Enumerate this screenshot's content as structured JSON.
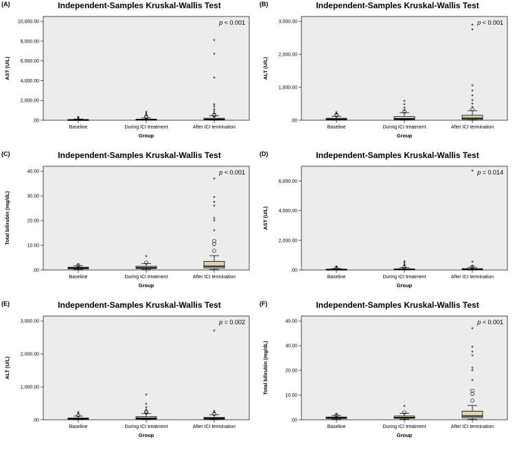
{
  "chart_data": [
    {
      "type": "box",
      "panel_label": "(A)",
      "title": "Independent-Samples Kruskal-Wallis Test",
      "pvalue": {
        "prefix": "p",
        "text": " < 0.001"
      },
      "xlabel": "Group",
      "ylabel": "AST (U/L)",
      "ylim": [
        0,
        10500
      ],
      "yticks": [
        0,
        2000,
        4000,
        6000,
        8000,
        10000
      ],
      "ytick_labels": [
        ".00",
        "2,000.00",
        "4,000.00",
        "6,000.00",
        "8,000.00",
        "10,000.00"
      ],
      "categories": [
        "Baseline",
        "During ICI treatment",
        "After ICI termination"
      ],
      "boxes": [
        {
          "q1": 30,
          "median": 45,
          "q3": 70,
          "whisker_low": 10,
          "whisker_high": 120,
          "outliers": [],
          "extremes": [
            180,
            250,
            330
          ]
        },
        {
          "q1": 35,
          "median": 60,
          "q3": 110,
          "whisker_low": 10,
          "whisker_high": 230,
          "outliers": [
            300,
            380
          ],
          "extremes": [
            550,
            700,
            850
          ]
        },
        {
          "q1": 40,
          "median": 90,
          "q3": 200,
          "whisker_low": 10,
          "whisker_high": 450,
          "outliers": [
            500,
            560
          ],
          "extremes": [
            700,
            900,
            1100,
            1400,
            1600,
            4300,
            6700,
            8100
          ]
        }
      ]
    },
    {
      "type": "box",
      "panel_label": "(B)",
      "title": "Independent-Samples Kruskal-Wallis Test",
      "pvalue": {
        "prefix": "p",
        "text": " < 0.001"
      },
      "xlabel": "Group",
      "ylabel": "ALT (U/L)",
      "ylim": [
        0,
        3150
      ],
      "yticks": [
        0,
        1000,
        2000,
        3000
      ],
      "ytick_labels": [
        ".00",
        "1,000.00",
        "2,000.00",
        "3,000.00"
      ],
      "categories": [
        "Baseline",
        "During ICI treatment",
        "After ICI termination"
      ],
      "boxes": [
        {
          "q1": 15,
          "median": 30,
          "q3": 60,
          "whisker_low": 5,
          "whisker_high": 120,
          "outliers": [
            150,
            170
          ],
          "extremes": [
            200,
            240
          ]
        },
        {
          "q1": 20,
          "median": 45,
          "q3": 110,
          "whisker_low": 5,
          "whisker_high": 230,
          "outliers": [
            260
          ],
          "extremes": [
            300,
            380,
            480,
            580
          ]
        },
        {
          "q1": 25,
          "median": 60,
          "q3": 150,
          "whisker_low": 5,
          "whisker_high": 290,
          "outliers": [
            330
          ],
          "extremes": [
            400,
            500,
            600,
            750,
            900,
            1050,
            2750,
            2900
          ]
        }
      ]
    },
    {
      "type": "box",
      "panel_label": "(C)",
      "title": "Independent-Samples Kruskal-Wallis Test",
      "pvalue": {
        "prefix": "p",
        "text": " < 0.001"
      },
      "xlabel": "Group",
      "ylabel": "Total bilirubin (mg/dL)",
      "ylim": [
        0,
        42
      ],
      "yticks": [
        0,
        10,
        20,
        30,
        40
      ],
      "ytick_labels": [
        ".00",
        "10.00",
        "20.00",
        "30.00",
        "40.00"
      ],
      "categories": [
        "Baseline",
        "During ICI treatment",
        "After ICI termination"
      ],
      "boxes": [
        {
          "q1": 0.5,
          "median": 0.8,
          "q3": 1.1,
          "whisker_low": 0.2,
          "whisker_high": 1.7,
          "outliers": [
            1.9
          ],
          "extremes": [
            2.2
          ]
        },
        {
          "q1": 0.6,
          "median": 0.9,
          "q3": 1.5,
          "whisker_low": 0.2,
          "whisker_high": 2.6,
          "outliers": [
            3.0
          ],
          "extremes": [
            5.5
          ]
        },
        {
          "q1": 0.8,
          "median": 1.5,
          "q3": 3.5,
          "whisker_low": 0.2,
          "whisker_high": 5.8,
          "outliers": [
            7.8,
            10.5,
            11.8
          ],
          "extremes": [
            16,
            20,
            21,
            26,
            27.5,
            29.5,
            37
          ]
        }
      ]
    },
    {
      "type": "box",
      "panel_label": "(D)",
      "title": "Independent-Samples Kruskal-Wallis Test",
      "pvalue": {
        "prefix": "p",
        "text": " = 0.014"
      },
      "xlabel": "Group",
      "ylabel": "AST (U/L)",
      "ylim": [
        0,
        7000
      ],
      "yticks": [
        0,
        2000,
        4000,
        6000
      ],
      "ytick_labels": [
        ".00",
        "2,000.00",
        "4,000.00",
        "6,000.00"
      ],
      "categories": [
        "Baseline",
        "During ICI treatment",
        "After ICI termination"
      ],
      "boxes": [
        {
          "q1": 20,
          "median": 35,
          "q3": 60,
          "whisker_low": 5,
          "whisker_high": 100,
          "outliers": [
            130
          ],
          "extremes": [
            180,
            230
          ]
        },
        {
          "q1": 25,
          "median": 45,
          "q3": 80,
          "whisker_low": 5,
          "whisker_high": 160,
          "outliers": [
            200
          ],
          "extremes": [
            280,
            380,
            480,
            580
          ]
        },
        {
          "q1": 25,
          "median": 50,
          "q3": 90,
          "whisker_low": 5,
          "whisker_high": 180,
          "outliers": [
            220
          ],
          "extremes": [
            250,
            550,
            6700
          ]
        }
      ]
    },
    {
      "type": "box",
      "panel_label": "(E)",
      "title": "Independent-Samples Kruskal-Wallis Test",
      "pvalue": {
        "prefix": "p",
        "text": " = 0.002"
      },
      "xlabel": "Group",
      "ylabel": "ALT (U/L)",
      "ylim": [
        0,
        3150
      ],
      "yticks": [
        0,
        1000,
        2000,
        3000
      ],
      "ytick_labels": [
        ".00",
        "1,000.00",
        "2,000.00",
        "3,000.00"
      ],
      "categories": [
        "Baseline",
        "During ICI treatment",
        "After ICI termination"
      ],
      "boxes": [
        {
          "q1": 15,
          "median": 30,
          "q3": 55,
          "whisker_low": 5,
          "whisker_high": 110,
          "outliers": [
            140
          ],
          "extremes": [
            180,
            230
          ]
        },
        {
          "q1": 20,
          "median": 45,
          "q3": 95,
          "whisker_low": 5,
          "whisker_high": 190,
          "outliers": [
            220,
            250
          ],
          "extremes": [
            300,
            380,
            480,
            760
          ]
        },
        {
          "q1": 20,
          "median": 40,
          "q3": 75,
          "whisker_low": 5,
          "whisker_high": 150,
          "outliers": [
            180
          ],
          "extremes": [
            220,
            260,
            2700
          ]
        }
      ]
    },
    {
      "type": "box",
      "panel_label": "(F)",
      "title": "Independent-Samples Kruskal-Wallis Test",
      "pvalue": {
        "prefix": "p",
        "text": " < 0.001"
      },
      "xlabel": "Group",
      "ylabel": "Total bilirubin (mg/dL)",
      "ylim": [
        0,
        42
      ],
      "yticks": [
        0,
        10,
        20,
        30,
        40
      ],
      "ytick_labels": [
        ".00",
        "10.00",
        "20.00",
        "30.00",
        "40.00"
      ],
      "categories": [
        "Baseline",
        "During ICI treatment",
        "After ICI termination"
      ],
      "boxes": [
        {
          "q1": 0.5,
          "median": 0.8,
          "q3": 1.1,
          "whisker_low": 0.2,
          "whisker_high": 1.7,
          "outliers": [
            1.9
          ],
          "extremes": [
            2.2
          ]
        },
        {
          "q1": 0.6,
          "median": 0.9,
          "q3": 1.5,
          "whisker_low": 0.2,
          "whisker_high": 2.6,
          "outliers": [
            3.0
          ],
          "extremes": [
            5.5
          ]
        },
        {
          "q1": 0.8,
          "median": 1.5,
          "q3": 3.5,
          "whisker_low": 0.2,
          "whisker_high": 5.8,
          "outliers": [
            7.8,
            10.5,
            11.8
          ],
          "extremes": [
            16,
            20,
            21,
            26,
            27.5,
            29.5,
            37
          ]
        }
      ]
    }
  ]
}
